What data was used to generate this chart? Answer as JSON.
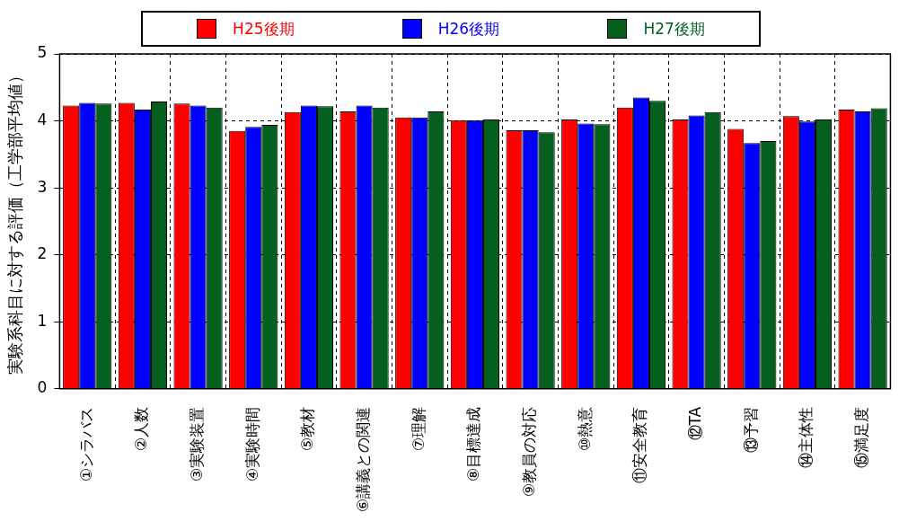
{
  "chart_data": {
    "type": "bar",
    "ylabel": "実験系科目に対する評価（工学部平均値）",
    "categories": [
      "①シラバス",
      "②人数",
      "③実験装置",
      "④実験時間",
      "⑤教材",
      "⑥講義との関連",
      "⑦理解",
      "⑧目標達成",
      "⑨教員の対応",
      "⑩熱意",
      "⑪安全教育",
      "⑫TA",
      "⑬予習",
      "⑭主体性",
      "⑮満足度"
    ],
    "series": [
      {
        "name": "H25後期",
        "color": "#ff0000",
        "values": [
          4.23,
          4.27,
          4.26,
          3.85,
          4.13,
          4.14,
          4.05,
          4.01,
          3.86,
          4.02,
          4.2,
          4.02,
          3.88,
          4.07,
          4.17
        ]
      },
      {
        "name": "H26後期",
        "color": "#0000ff",
        "values": [
          4.27,
          4.17,
          4.23,
          3.91,
          4.23,
          4.23,
          4.05,
          4.01,
          3.86,
          3.96,
          4.35,
          4.08,
          3.67,
          3.99,
          4.14
        ]
      },
      {
        "name": "H27後期",
        "color": "#056020",
        "values": [
          4.26,
          4.29,
          4.2,
          3.94,
          4.22,
          4.2,
          4.14,
          4.02,
          3.83,
          3.95,
          4.3,
          4.13,
          3.7,
          4.02,
          4.19
        ]
      }
    ],
    "ylim": [
      0,
      5
    ],
    "yticks": [
      0,
      1,
      2,
      3,
      4,
      5
    ],
    "grid": true,
    "legend": "top"
  }
}
